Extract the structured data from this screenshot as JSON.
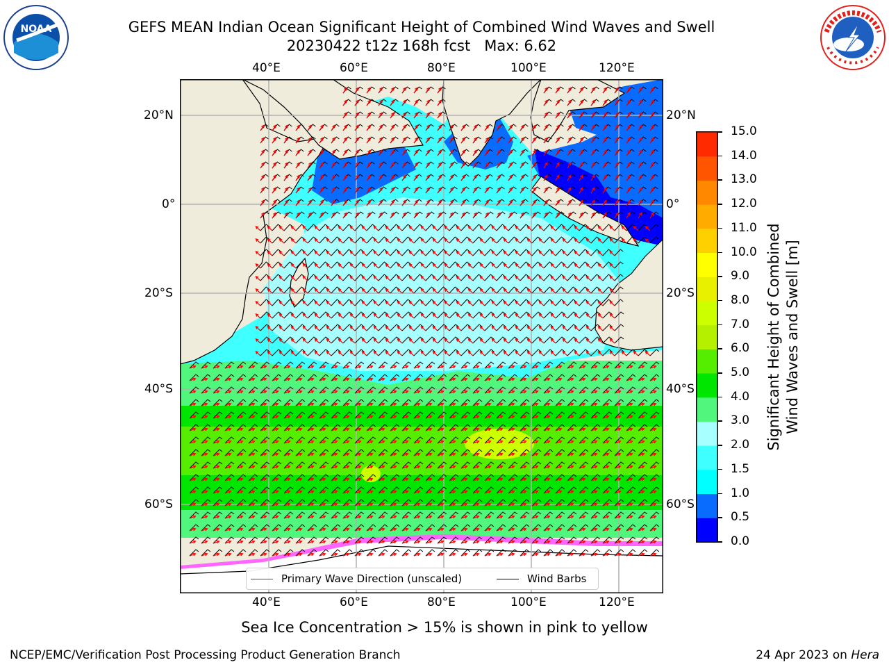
{
  "header": {
    "title_line1": "GEFS MEAN Indian Ocean Significant Height of Combined Wind Waves and Swell",
    "title_line2": "20230422 t12z 168h fcst   Max: 6.62"
  },
  "logos": {
    "noaa": {
      "text": "NOAA",
      "ring_text": "NATIONAL OCEANIC AND ATMOSPHERIC ADMINISTRATION · U.S. DEPARTMENT OF COMMERCE"
    },
    "nws": {
      "ring_text": "NATIONAL WEATHER SERVICE"
    }
  },
  "map": {
    "lon_labels": [
      "40°E",
      "60°E",
      "80°E",
      "100°E",
      "120°E"
    ],
    "lat_labels": [
      "20°N",
      "0°",
      "20°S",
      "40°S",
      "60°S"
    ],
    "land_color": "#efecdc",
    "grid_color": "#b0b0b0"
  },
  "colorbar": {
    "label_line1": "Significant Height of Combined",
    "label_line2": "Wind Waves and Swell [m]",
    "ticks": [
      "0.0",
      "0.5",
      "1.0",
      "1.5",
      "2.0",
      "3.0",
      "4.0",
      "5.0",
      "6.0",
      "7.0",
      "8.0",
      "9.0",
      "10.0",
      "11.0",
      "12.0",
      "13.0",
      "14.0",
      "15.0"
    ],
    "colors": [
      "#0000ff",
      "#0a6cff",
      "#00ffff",
      "#40ffff",
      "#a8ffff",
      "#50f77c",
      "#00e600",
      "#55ee00",
      "#b4f000",
      "#ccff00",
      "#e8f000",
      "#ffff00",
      "#ffd000",
      "#ffab00",
      "#ff8800",
      "#ff5500",
      "#ff2a00"
    ]
  },
  "legend": {
    "wave_label": "Primary Wave Direction (unscaled)",
    "wave_color": "#ff0000",
    "wind_label": "Wind Barbs",
    "wind_color": "#000000"
  },
  "caption": "Sea Ice Concentration > 15% is shown in pink to yellow",
  "footer": {
    "left": "NCEP/EMC/Verification Post Processing Product Generation Branch",
    "right_date": "24 Apr 2023 on ",
    "right_machine": "Hera"
  }
}
